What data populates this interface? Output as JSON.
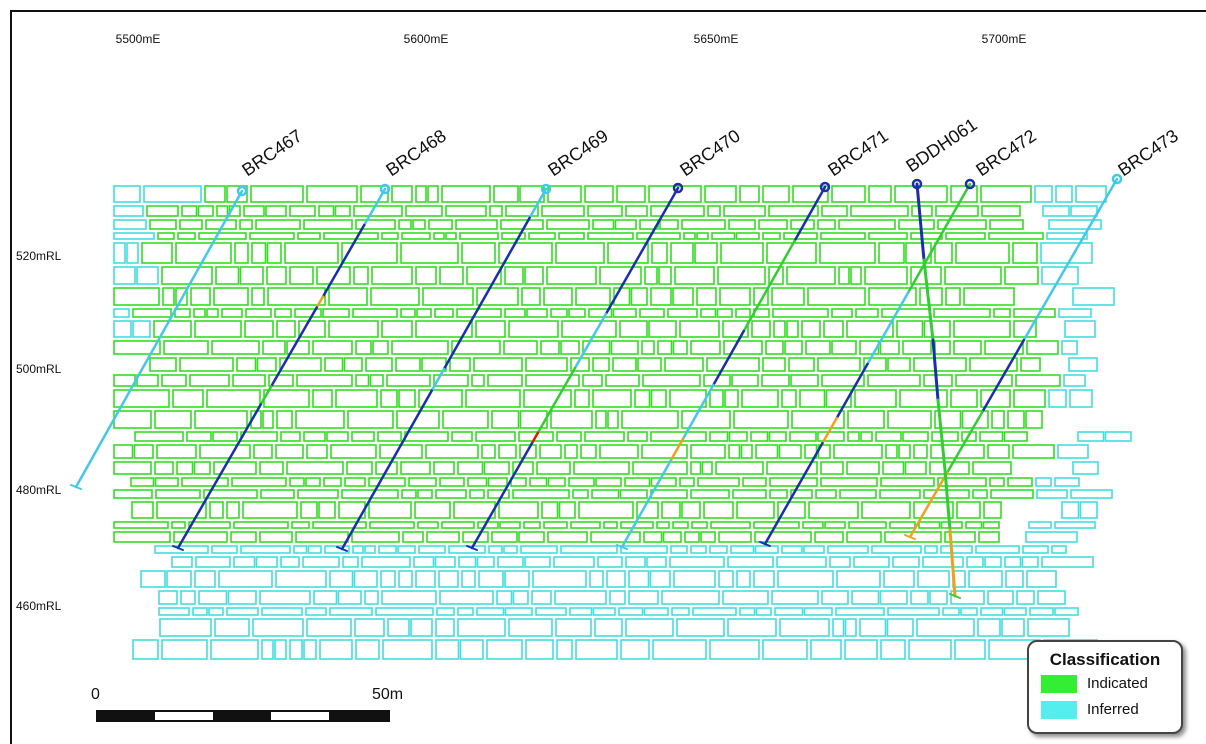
{
  "eastings": [
    "5500mE",
    "5600mE",
    "5650mE",
    "5700mE"
  ],
  "rls": [
    "520mRL",
    "500mRL",
    "480mRL",
    "460mRL"
  ],
  "holes": [
    "BRC467",
    "BRC468",
    "BRC469",
    "BRC470",
    "BRC471",
    "BDDH061",
    "BRC472",
    "BRC473"
  ],
  "legend": {
    "title": "Classification",
    "items": [
      {
        "label": "Indicated",
        "color": "#33ee33"
      },
      {
        "label": "Inferred",
        "color": "#55eeee"
      }
    ]
  },
  "scale_bar": {
    "start_label": "0",
    "end_label": "50m"
  },
  "colors": {
    "indicated_block": "#33dd22",
    "inferred_block": "#44dede",
    "trace_blue": "#1a2fb0",
    "trace_cyan": "#44c8e8",
    "trace_green": "#33cc33",
    "trace_orange": "#f0a020",
    "trace_red": "#cc2200"
  }
}
